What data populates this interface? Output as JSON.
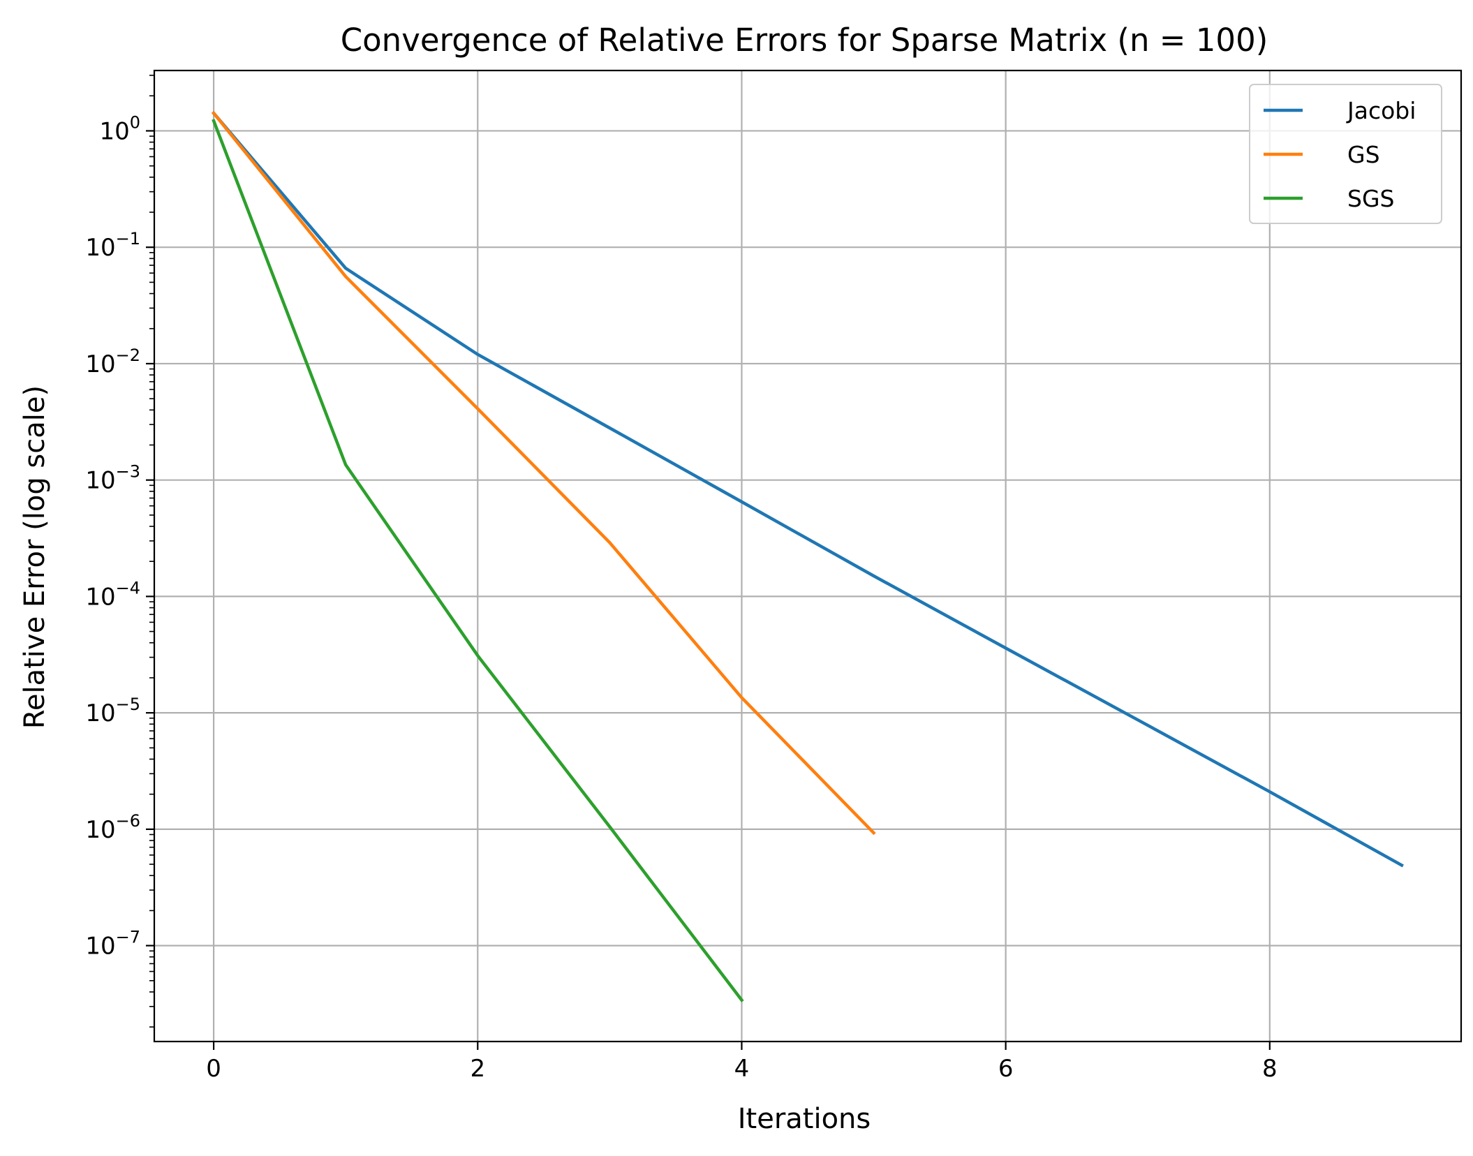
{
  "chart_data": {
    "type": "line",
    "title": "Convergence of Relative Errors for Sparse Matrix (n = 100)",
    "xlabel": "Iterations",
    "ylabel": "Relative Error (log scale)",
    "yscale": "log",
    "xlim": [
      -0.45,
      9.45
    ],
    "ylim": [
      1.5e-08,
      3.3
    ],
    "xticks": [
      0,
      2,
      4,
      6,
      8
    ],
    "yticks": [
      1,
      0.1,
      0.01,
      0.001,
      0.0001,
      1e-05,
      1e-06,
      1e-07
    ],
    "ytick_labels": [
      {
        "base": "10",
        "exp": "0"
      },
      {
        "base": "10",
        "exp": "−1"
      },
      {
        "base": "10",
        "exp": "−2"
      },
      {
        "base": "10",
        "exp": "−3"
      },
      {
        "base": "10",
        "exp": "−4"
      },
      {
        "base": "10",
        "exp": "−5"
      },
      {
        "base": "10",
        "exp": "−6"
      },
      {
        "base": "10",
        "exp": "−7"
      }
    ],
    "grid": true,
    "legend_position": "top-right",
    "series": [
      {
        "name": "Jacobi",
        "color": "#1f77b4",
        "x": [
          0,
          1,
          2,
          3,
          4,
          5,
          6,
          7,
          8,
          9
        ],
        "y": [
          1.42,
          0.066,
          0.012,
          0.0028,
          0.00065,
          0.00015,
          3.6e-05,
          8.7e-06,
          2.1e-06,
          4.9e-07
        ]
      },
      {
        "name": "GS",
        "color": "#ff7f0e",
        "x": [
          0,
          1,
          2,
          3,
          4,
          5
        ],
        "y": [
          1.42,
          0.056,
          0.0041,
          0.00029,
          1.35e-05,
          9.3e-07
        ]
      },
      {
        "name": "SGS",
        "color": "#2ca02c",
        "x": [
          0,
          1,
          2,
          3,
          4
        ],
        "y": [
          1.22,
          0.00135,
          3.1e-05,
          1.05e-06,
          3.4e-08
        ]
      }
    ]
  }
}
